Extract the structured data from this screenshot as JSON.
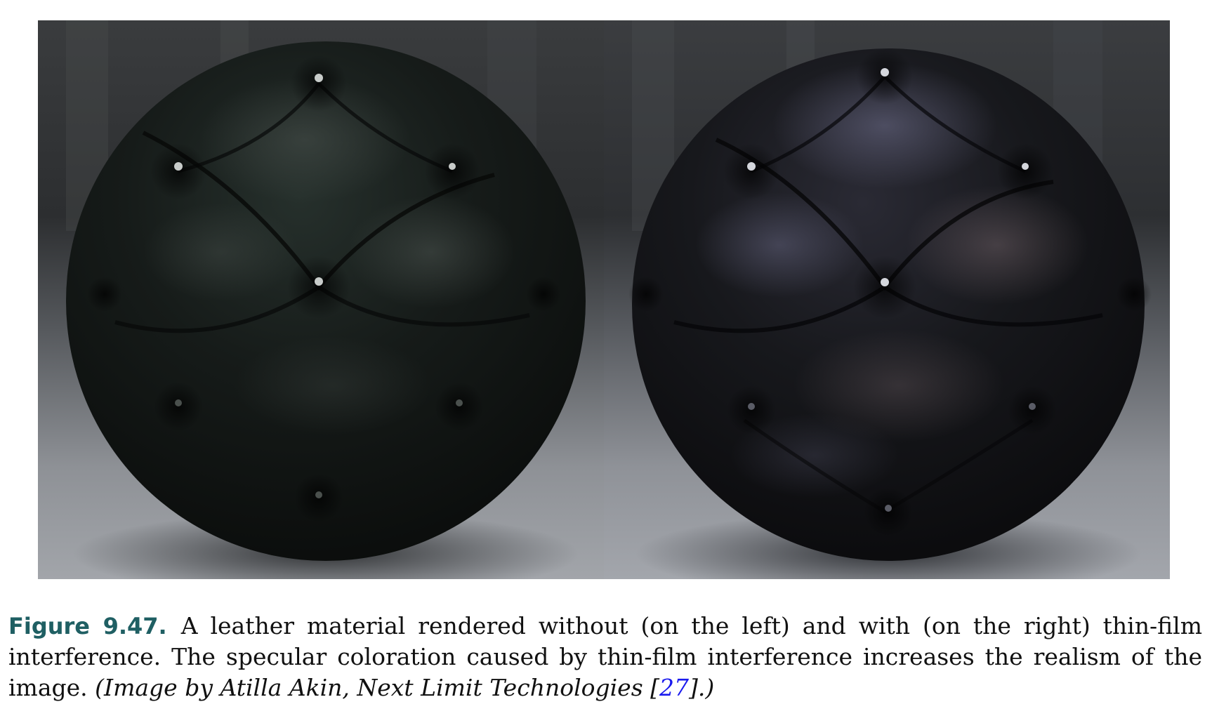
{
  "figure": {
    "label": "Figure 9.47.",
    "caption_main": "A leather material rendered without (on the left) and with (on the right) thin-film interference. The specular coloration caused by thin-film interference increases the realism of the image.",
    "credit_prefix": "(Image by Atilla Akin, Next Limit Technologies [",
    "credit_ref": "27",
    "credit_suffix": "].)"
  },
  "colors": {
    "caption_label": "#1f5f63",
    "reference_link": "#1a1aee",
    "leather_base": "#15191a",
    "background_dark": "#2a2c2e",
    "floor": "#8e9196"
  }
}
